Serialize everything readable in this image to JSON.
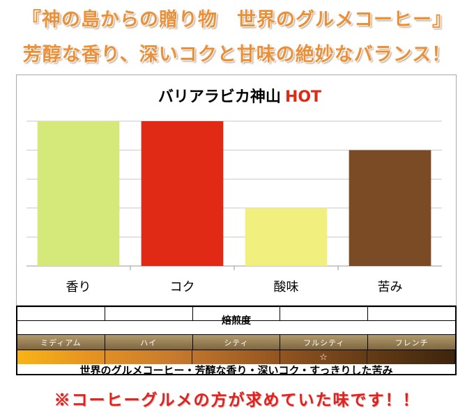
{
  "banner": {
    "line1": "『神の島からの贈り物　世界のグルメコーヒー』",
    "line2": "芳醇な香り、深いコクと甘味の絶妙なバランス！"
  },
  "chart_data": {
    "type": "bar",
    "title": "バリアラビカ神山",
    "title_suffix": "HOT",
    "categories": [
      "香り",
      "コク",
      "酸味",
      "苦み"
    ],
    "values": [
      5,
      5,
      2,
      4
    ],
    "colors": [
      "#d5e87a",
      "#e02a16",
      "#f1ef7e",
      "#7a4b25"
    ],
    "ylim": [
      0,
      5
    ],
    "grid": true,
    "legend": "none",
    "title_color": "#000000",
    "title_suffix_color": "#e02a16"
  },
  "roast_table": {
    "title": "焙煎度",
    "levels": [
      "ミディアム",
      "ハイ",
      "シティ",
      "フルシティ",
      "フレンチ"
    ],
    "selected_index": 3,
    "marker": "☆",
    "description": "世界のグルメコーヒー・芳醇な香り・深いコク・すっきりした苦み"
  },
  "footer": {
    "note": "※コーヒーグルメの方が求めていた味です！！"
  }
}
